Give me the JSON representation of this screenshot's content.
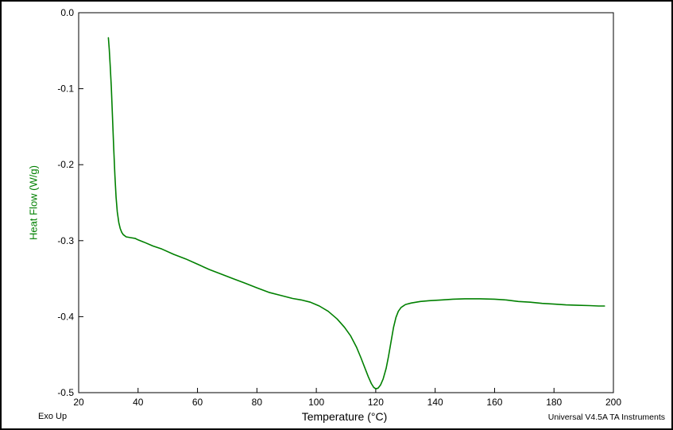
{
  "footer": {
    "exo_up": "Exo Up",
    "attribution": "Universal V4.5A TA Instruments"
  },
  "chart_data": {
    "type": "line",
    "title": "",
    "xlabel": "Temperature (°C)",
    "ylabel": "Heat Flow (W/g)",
    "xlim": [
      20,
      200
    ],
    "ylim": [
      -0.5,
      0.0
    ],
    "xticks": [
      "20",
      "40",
      "60",
      "80",
      "100",
      "120",
      "140",
      "160",
      "180",
      "200"
    ],
    "yticks": [
      "0.0",
      "-0.1",
      "-0.2",
      "-0.3",
      "-0.4",
      "-0.5"
    ],
    "grid": false,
    "legend": null,
    "axis_color": "#000000",
    "tick_label_color": "#000000",
    "series": [
      {
        "name": "heat-flow",
        "color": "#008000",
        "points": [
          [
            30.0,
            -0.033
          ],
          [
            30.3,
            -0.048
          ],
          [
            30.6,
            -0.068
          ],
          [
            31.0,
            -0.098
          ],
          [
            31.4,
            -0.138
          ],
          [
            31.8,
            -0.178
          ],
          [
            32.2,
            -0.214
          ],
          [
            32.6,
            -0.243
          ],
          [
            33.0,
            -0.262
          ],
          [
            33.5,
            -0.276
          ],
          [
            34.0,
            -0.284
          ],
          [
            34.5,
            -0.289
          ],
          [
            35.0,
            -0.292
          ],
          [
            36.0,
            -0.295
          ],
          [
            37.5,
            -0.296
          ],
          [
            39.0,
            -0.297
          ],
          [
            40.0,
            -0.299
          ],
          [
            42.0,
            -0.302
          ],
          [
            45.0,
            -0.307
          ],
          [
            48.0,
            -0.311
          ],
          [
            52.0,
            -0.318
          ],
          [
            56.0,
            -0.324
          ],
          [
            60.0,
            -0.331
          ],
          [
            64.0,
            -0.338
          ],
          [
            68.0,
            -0.344
          ],
          [
            72.0,
            -0.35
          ],
          [
            76.0,
            -0.356
          ],
          [
            80.0,
            -0.362
          ],
          [
            84.0,
            -0.368
          ],
          [
            88.0,
            -0.372
          ],
          [
            92.0,
            -0.376
          ],
          [
            95.0,
            -0.378
          ],
          [
            98.0,
            -0.381
          ],
          [
            101.0,
            -0.386
          ],
          [
            104.0,
            -0.393
          ],
          [
            107.0,
            -0.403
          ],
          [
            109.5,
            -0.414
          ],
          [
            111.5,
            -0.425
          ],
          [
            113.5,
            -0.44
          ],
          [
            115.0,
            -0.454
          ],
          [
            116.5,
            -0.469
          ],
          [
            117.5,
            -0.479
          ],
          [
            118.5,
            -0.488
          ],
          [
            119.3,
            -0.493
          ],
          [
            120.0,
            -0.495
          ],
          [
            120.8,
            -0.494
          ],
          [
            121.6,
            -0.49
          ],
          [
            122.5,
            -0.482
          ],
          [
            123.5,
            -0.468
          ],
          [
            124.3,
            -0.452
          ],
          [
            125.2,
            -0.432
          ],
          [
            126.0,
            -0.414
          ],
          [
            126.8,
            -0.401
          ],
          [
            127.6,
            -0.393
          ],
          [
            128.5,
            -0.388
          ],
          [
            130.0,
            -0.384
          ],
          [
            132.0,
            -0.382
          ],
          [
            135.0,
            -0.38
          ],
          [
            138.0,
            -0.379
          ],
          [
            142.0,
            -0.378
          ],
          [
            146.0,
            -0.377
          ],
          [
            150.0,
            -0.3765
          ],
          [
            155.0,
            -0.3765
          ],
          [
            160.0,
            -0.377
          ],
          [
            164.0,
            -0.378
          ],
          [
            168.0,
            -0.38
          ],
          [
            172.0,
            -0.381
          ],
          [
            176.0,
            -0.3825
          ],
          [
            180.0,
            -0.3835
          ],
          [
            184.0,
            -0.3845
          ],
          [
            188.0,
            -0.385
          ],
          [
            192.0,
            -0.3855
          ],
          [
            195.0,
            -0.386
          ],
          [
            197.0,
            -0.386
          ]
        ]
      }
    ]
  }
}
